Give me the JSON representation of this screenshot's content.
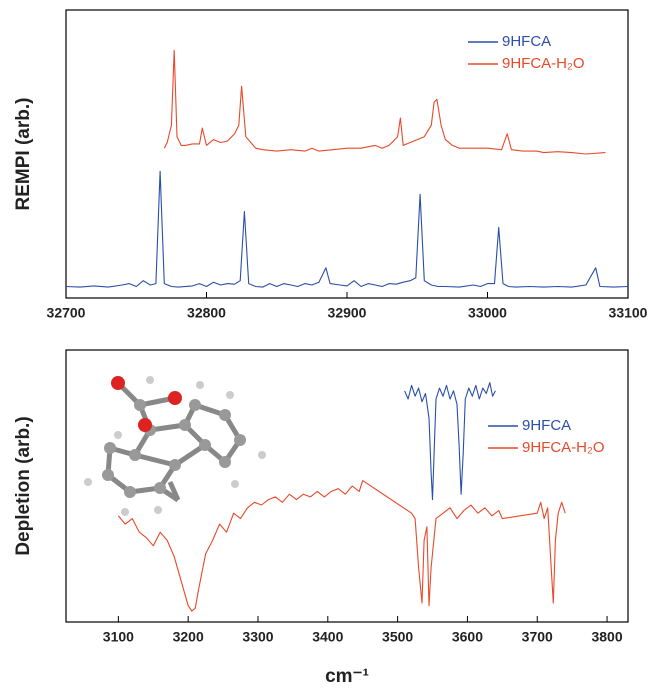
{
  "chart_data": [
    {
      "type": "line",
      "y_label": "REMPI (arb.)",
      "xlim": [
        32700,
        33100
      ],
      "xticks": [
        32700,
        32800,
        32900,
        33000,
        33100
      ],
      "ylim": [
        0,
        1
      ],
      "legend": "upper right",
      "series": [
        {
          "name": "9HFCA",
          "color": "#2b4ea8",
          "x": [
            32700,
            32710,
            32720,
            32730,
            32740,
            32745,
            32750,
            32755,
            32760,
            32764,
            32767,
            32770,
            32775,
            32780,
            32790,
            32795,
            32800,
            32805,
            32810,
            32815,
            32820,
            32824,
            32827,
            32830,
            32835,
            32840,
            32845,
            32850,
            32855,
            32860,
            32865,
            32870,
            32875,
            32880,
            32885,
            32888,
            32895,
            32900,
            32905,
            32910,
            32915,
            32920,
            32925,
            32930,
            32935,
            32940,
            32945,
            32949,
            32952,
            32955,
            32960,
            32965,
            32970,
            32980,
            32990,
            32995,
            33000,
            33005,
            33008,
            33011,
            33015,
            33020,
            33030,
            33040,
            33050,
            33060,
            33070,
            33077,
            33080,
            33090,
            33100
          ],
          "values": [
            0.04,
            0.038,
            0.042,
            0.038,
            0.045,
            0.05,
            0.04,
            0.06,
            0.045,
            0.05,
            0.44,
            0.05,
            0.04,
            0.038,
            0.042,
            0.05,
            0.04,
            0.055,
            0.045,
            0.05,
            0.048,
            0.06,
            0.3,
            0.05,
            0.04,
            0.038,
            0.05,
            0.04,
            0.05,
            0.045,
            0.04,
            0.05,
            0.045,
            0.055,
            0.105,
            0.05,
            0.045,
            0.042,
            0.06,
            0.04,
            0.05,
            0.045,
            0.04,
            0.05,
            0.048,
            0.055,
            0.06,
            0.07,
            0.36,
            0.06,
            0.045,
            0.04,
            0.04,
            0.038,
            0.045,
            0.04,
            0.05,
            0.05,
            0.245,
            0.05,
            0.04,
            0.038,
            0.04,
            0.038,
            0.04,
            0.038,
            0.045,
            0.105,
            0.04,
            0.038,
            0.04
          ]
        },
        {
          "name": "9HFCA-H₂O",
          "color": "#e8492a",
          "x": [
            32770,
            32772,
            32775,
            32777,
            32779,
            32782,
            32785,
            32790,
            32795,
            32797,
            32800,
            32805,
            32810,
            32815,
            32820,
            32823,
            32825,
            32828,
            32835,
            32840,
            32850,
            32860,
            32870,
            32875,
            32880,
            32890,
            32900,
            32910,
            32915,
            32920,
            32925,
            32930,
            32936,
            32938,
            32940,
            32945,
            32950,
            32955,
            32960,
            32962,
            32964,
            32967,
            32970,
            32975,
            32980,
            32990,
            33000,
            33010,
            33014,
            33017,
            33025,
            33035,
            33040,
            33050,
            33060,
            33070,
            33084
          ],
          "values": [
            0.52,
            0.54,
            0.6,
            0.86,
            0.56,
            0.53,
            0.53,
            0.535,
            0.535,
            0.59,
            0.53,
            0.55,
            0.54,
            0.545,
            0.57,
            0.6,
            0.735,
            0.56,
            0.52,
            0.515,
            0.51,
            0.515,
            0.51,
            0.52,
            0.51,
            0.515,
            0.52,
            0.52,
            0.525,
            0.53,
            0.52,
            0.53,
            0.56,
            0.625,
            0.53,
            0.54,
            0.55,
            0.56,
            0.6,
            0.68,
            0.69,
            0.6,
            0.55,
            0.53,
            0.52,
            0.52,
            0.52,
            0.515,
            0.57,
            0.515,
            0.51,
            0.51,
            0.505,
            0.508,
            0.505,
            0.5,
            0.505
          ]
        }
      ]
    },
    {
      "type": "line",
      "y_label": "Depletion (arb.)",
      "x_label": "cm⁻¹",
      "xlim": [
        3025,
        3830
      ],
      "xticks": [
        3100,
        3200,
        3300,
        3400,
        3500,
        3600,
        3700,
        3800
      ],
      "ylim": [
        0,
        1
      ],
      "legend": "right",
      "series": [
        {
          "name": "9HFCA",
          "color": "#2b4ea8",
          "x": [
            3510,
            3515,
            3520,
            3525,
            3530,
            3535,
            3540,
            3545,
            3548,
            3550,
            3552,
            3555,
            3560,
            3565,
            3570,
            3575,
            3580,
            3585,
            3588,
            3591,
            3594,
            3597,
            3602,
            3607,
            3612,
            3617,
            3622,
            3627,
            3632,
            3636,
            3640
          ],
          "values": [
            0.85,
            0.82,
            0.87,
            0.83,
            0.86,
            0.81,
            0.84,
            0.75,
            0.55,
            0.45,
            0.6,
            0.82,
            0.86,
            0.83,
            0.87,
            0.82,
            0.85,
            0.8,
            0.65,
            0.47,
            0.62,
            0.82,
            0.86,
            0.83,
            0.87,
            0.82,
            0.86,
            0.84,
            0.88,
            0.83,
            0.85
          ]
        },
        {
          "name": "9HFCA-H₂O",
          "color": "#e8492a",
          "x": [
            3100,
            3110,
            3120,
            3130,
            3140,
            3150,
            3160,
            3170,
            3180,
            3190,
            3200,
            3205,
            3210,
            3215,
            3225,
            3235,
            3245,
            3255,
            3265,
            3275,
            3285,
            3295,
            3305,
            3315,
            3325,
            3335,
            3345,
            3355,
            3365,
            3375,
            3385,
            3395,
            3405,
            3415,
            3425,
            3435,
            3445,
            3450,
            3520,
            3525,
            3530,
            3535,
            3538,
            3542,
            3545,
            3548,
            3555,
            3565,
            3575,
            3585,
            3595,
            3605,
            3615,
            3625,
            3635,
            3645,
            3650,
            3700,
            3705,
            3710,
            3715,
            3720,
            3723,
            3726,
            3730,
            3735,
            3740
          ],
          "values": [
            0.39,
            0.36,
            0.38,
            0.33,
            0.31,
            0.28,
            0.33,
            0.3,
            0.24,
            0.15,
            0.06,
            0.04,
            0.05,
            0.12,
            0.25,
            0.3,
            0.36,
            0.33,
            0.4,
            0.38,
            0.42,
            0.44,
            0.43,
            0.45,
            0.46,
            0.44,
            0.47,
            0.45,
            0.47,
            0.46,
            0.48,
            0.46,
            0.48,
            0.49,
            0.47,
            0.5,
            0.48,
            0.52,
            0.4,
            0.38,
            0.2,
            0.07,
            0.3,
            0.35,
            0.06,
            0.2,
            0.38,
            0.4,
            0.42,
            0.38,
            0.41,
            0.43,
            0.4,
            0.42,
            0.39,
            0.41,
            0.38,
            0.4,
            0.44,
            0.38,
            0.42,
            0.2,
            0.07,
            0.3,
            0.4,
            0.44,
            0.4
          ]
        }
      ]
    }
  ]
}
